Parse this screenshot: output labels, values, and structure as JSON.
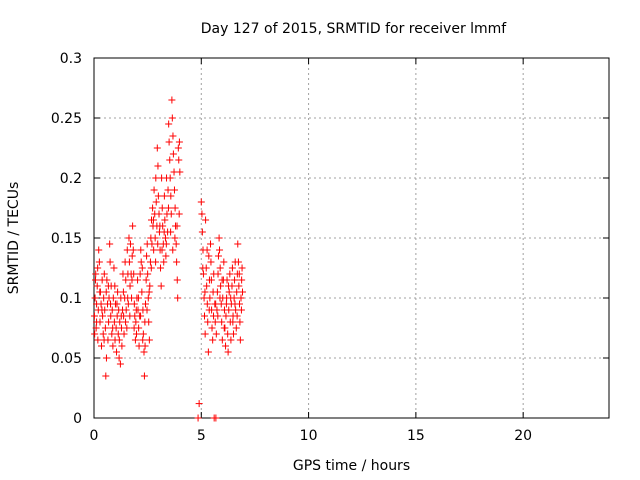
{
  "chart_data": {
    "type": "scatter",
    "title": "Day 127 of 2015, SRMTID for receiver lmmf",
    "xlabel": "GPS time / hours",
    "ylabel": "SRMTID / TECUs",
    "xlim": [
      0,
      24
    ],
    "ylim": [
      0,
      0.3
    ],
    "xticks": [
      0,
      5,
      10,
      15,
      20
    ],
    "yticks": [
      0,
      0.05,
      0.1,
      0.15,
      0.2,
      0.25,
      0.3
    ],
    "xtick_labels": [
      "0",
      "5",
      "10",
      "15",
      "20"
    ],
    "ytick_labels": [
      "0",
      "0.05",
      "0.1",
      "0.15",
      "0.2",
      "0.25",
      "0.3"
    ],
    "grid": true,
    "marker": "+",
    "color": "#ff0000",
    "series": [
      {
        "name": "SRMTID",
        "points": [
          [
            0.02,
            0.085
          ],
          [
            0.05,
            0.1
          ],
          [
            0.08,
            0.12
          ],
          [
            0.1,
            0.075
          ],
          [
            0.12,
            0.095
          ],
          [
            0.15,
            0.11
          ],
          [
            0.18,
            0.065
          ],
          [
            0.2,
            0.09
          ],
          [
            0.22,
            0.14
          ],
          [
            0.25,
            0.13
          ],
          [
            0.28,
            0.08
          ],
          [
            0.3,
            0.105
          ],
          [
            0.33,
            0.095
          ],
          [
            0.35,
            0.06
          ],
          [
            0.38,
            0.115
          ],
          [
            0.4,
            0.085
          ],
          [
            0.43,
            0.07
          ],
          [
            0.45,
            0.1
          ],
          [
            0.48,
            0.12
          ],
          [
            0.5,
            0.09
          ],
          [
            0.53,
            0.075
          ],
          [
            0.55,
            0.035
          ],
          [
            0.58,
            0.05
          ],
          [
            0.6,
            0.115
          ],
          [
            0.63,
            0.095
          ],
          [
            0.65,
            0.065
          ],
          [
            0.68,
            0.08
          ],
          [
            0.7,
            0.1
          ],
          [
            0.73,
            0.145
          ],
          [
            0.75,
            0.13
          ],
          [
            0.78,
            0.085
          ],
          [
            0.8,
            0.11
          ],
          [
            0.83,
            0.07
          ],
          [
            0.85,
            0.09
          ],
          [
            0.88,
            0.06
          ],
          [
            0.9,
            0.1
          ],
          [
            0.93,
            0.125
          ],
          [
            0.95,
            0.08
          ],
          [
            0.98,
            0.065
          ],
          [
            1.0,
            0.095
          ],
          [
            1.03,
            0.075
          ],
          [
            1.05,
            0.055
          ],
          [
            1.08,
            0.085
          ],
          [
            1.1,
            0.105
          ],
          [
            1.13,
            0.07
          ],
          [
            1.15,
            0.09
          ],
          [
            1.18,
            0.065
          ],
          [
            1.2,
            0.08
          ],
          [
            1.23,
            0.045
          ],
          [
            1.25,
            0.1
          ],
          [
            1.28,
            0.075
          ],
          [
            1.3,
            0.06
          ],
          [
            1.33,
            0.09
          ],
          [
            1.35,
            0.12
          ],
          [
            1.38,
            0.085
          ],
          [
            1.4,
            0.07
          ],
          [
            1.43,
            0.1
          ],
          [
            1.45,
            0.13
          ],
          [
            1.48,
            0.115
          ],
          [
            1.5,
            0.09
          ],
          [
            1.53,
            0.075
          ],
          [
            1.55,
            0.14
          ],
          [
            1.58,
            0.12
          ],
          [
            1.6,
            0.095
          ],
          [
            1.63,
            0.15
          ],
          [
            1.65,
            0.13
          ],
          [
            1.68,
            0.11
          ],
          [
            1.7,
            0.145
          ],
          [
            1.73,
            0.12
          ],
          [
            1.75,
            0.1
          ],
          [
            1.78,
            0.135
          ],
          [
            1.8,
            0.16
          ],
          [
            1.83,
            0.14
          ],
          [
            1.85,
            0.12
          ],
          [
            1.88,
            0.095
          ],
          [
            1.9,
            0.085
          ],
          [
            1.93,
            0.065
          ],
          [
            1.95,
            0.08
          ],
          [
            1.98,
            0.07
          ],
          [
            2.0,
            0.1
          ],
          [
            2.03,
            0.115
          ],
          [
            2.05,
            0.09
          ],
          [
            2.08,
            0.075
          ],
          [
            2.1,
            0.06
          ],
          [
            2.13,
            0.085
          ],
          [
            2.15,
            0.12
          ],
          [
            2.18,
            0.14
          ],
          [
            2.2,
            0.13
          ],
          [
            2.23,
            0.105
          ],
          [
            2.25,
            0.125
          ],
          [
            2.28,
            0.09
          ],
          [
            2.3,
            0.07
          ],
          [
            2.33,
            0.055
          ],
          [
            2.35,
            0.035
          ],
          [
            2.38,
            0.06
          ],
          [
            2.4,
            0.095
          ],
          [
            2.43,
            0.115
          ],
          [
            2.45,
            0.135
          ],
          [
            2.48,
            0.145
          ],
          [
            2.5,
            0.12
          ],
          [
            2.53,
            0.1
          ],
          [
            2.55,
            0.08
          ],
          [
            2.58,
            0.065
          ],
          [
            2.6,
            0.11
          ],
          [
            2.63,
            0.13
          ],
          [
            2.65,
            0.15
          ],
          [
            2.68,
            0.165
          ],
          [
            2.7,
            0.145
          ],
          [
            2.73,
            0.175
          ],
          [
            2.75,
            0.16
          ],
          [
            2.78,
            0.14
          ],
          [
            2.8,
            0.19
          ],
          [
            2.83,
            0.17
          ],
          [
            2.85,
            0.15
          ],
          [
            2.88,
            0.2
          ],
          [
            2.9,
            0.18
          ],
          [
            2.93,
            0.16
          ],
          [
            2.95,
            0.225
          ],
          [
            2.98,
            0.21
          ],
          [
            3.0,
            0.185
          ],
          [
            3.03,
            0.17
          ],
          [
            3.05,
            0.155
          ],
          [
            3.08,
            0.14
          ],
          [
            3.1,
            0.125
          ],
          [
            3.13,
            0.11
          ],
          [
            3.15,
            0.2
          ],
          [
            3.18,
            0.175
          ],
          [
            3.2,
            0.16
          ],
          [
            3.23,
            0.145
          ],
          [
            3.25,
            0.13
          ],
          [
            3.28,
            0.185
          ],
          [
            3.3,
            0.165
          ],
          [
            3.33,
            0.15
          ],
          [
            3.35,
            0.135
          ],
          [
            3.38,
            0.2
          ],
          [
            3.4,
            0.17
          ],
          [
            3.43,
            0.155
          ],
          [
            3.45,
            0.19
          ],
          [
            3.48,
            0.245
          ],
          [
            3.5,
            0.23
          ],
          [
            3.53,
            0.215
          ],
          [
            3.55,
            0.2
          ],
          [
            3.58,
            0.185
          ],
          [
            3.6,
            0.17
          ],
          [
            3.63,
            0.265
          ],
          [
            3.65,
            0.25
          ],
          [
            3.68,
            0.235
          ],
          [
            3.7,
            0.22
          ],
          [
            3.73,
            0.205
          ],
          [
            3.75,
            0.19
          ],
          [
            3.78,
            0.175
          ],
          [
            3.8,
            0.16
          ],
          [
            3.83,
            0.145
          ],
          [
            3.85,
            0.13
          ],
          [
            3.88,
            0.115
          ],
          [
            3.9,
            0.1
          ],
          [
            3.93,
            0.225
          ],
          [
            3.95,
            0.215
          ],
          [
            3.98,
            0.23
          ],
          [
            4.0,
            0.205
          ],
          [
            4.85,
            0.0
          ],
          [
            4.9,
            0.012
          ],
          [
            5.0,
            0.18
          ],
          [
            5.03,
            0.17
          ],
          [
            5.05,
            0.155
          ],
          [
            5.08,
            0.14
          ],
          [
            5.1,
            0.12
          ],
          [
            5.13,
            0.1
          ],
          [
            5.15,
            0.085
          ],
          [
            5.18,
            0.07
          ],
          [
            5.2,
            0.165
          ],
          [
            5.23,
            0.125
          ],
          [
            5.25,
            0.11
          ],
          [
            5.28,
            0.095
          ],
          [
            5.3,
            0.08
          ],
          [
            5.33,
            0.055
          ],
          [
            5.35,
            0.135
          ],
          [
            5.38,
            0.115
          ],
          [
            5.4,
            0.1
          ],
          [
            5.43,
            0.145
          ],
          [
            5.45,
            0.13
          ],
          [
            5.48,
            0.09
          ],
          [
            5.5,
            0.075
          ],
          [
            5.53,
            0.065
          ],
          [
            5.55,
            0.105
          ],
          [
            5.58,
            0.12
          ],
          [
            5.6,
            0.0
          ],
          [
            5.63,
            0.095
          ],
          [
            5.65,
            0.08
          ],
          [
            5.68,
            0.0
          ],
          [
            5.7,
            0.07
          ],
          [
            5.73,
            0.09
          ],
          [
            5.75,
            0.105
          ],
          [
            5.78,
            0.12
          ],
          [
            5.8,
            0.135
          ],
          [
            5.83,
            0.15
          ],
          [
            5.85,
            0.14
          ],
          [
            5.88,
            0.125
          ],
          [
            5.9,
            0.11
          ],
          [
            5.93,
            0.095
          ],
          [
            5.95,
            0.08
          ],
          [
            5.98,
            0.065
          ],
          [
            6.0,
            0.1
          ],
          [
            6.03,
            0.115
          ],
          [
            6.05,
            0.13
          ],
          [
            6.08,
            0.09
          ],
          [
            6.1,
            0.075
          ],
          [
            6.13,
            0.06
          ],
          [
            6.15,
            0.085
          ],
          [
            6.18,
            0.1
          ],
          [
            6.2,
            0.115
          ],
          [
            6.23,
            0.07
          ],
          [
            6.25,
            0.055
          ],
          [
            6.28,
            0.09
          ],
          [
            6.3,
            0.105
          ],
          [
            6.33,
            0.12
          ],
          [
            6.35,
            0.08
          ],
          [
            6.38,
            0.065
          ],
          [
            6.4,
            0.095
          ],
          [
            6.43,
            0.11
          ],
          [
            6.45,
            0.125
          ],
          [
            6.48,
            0.085
          ],
          [
            6.5,
            0.07
          ],
          [
            6.53,
            0.1
          ],
          [
            6.55,
            0.115
          ],
          [
            6.58,
            0.13
          ],
          [
            6.6,
            0.09
          ],
          [
            6.63,
            0.075
          ],
          [
            6.65,
            0.105
          ],
          [
            6.68,
            0.12
          ],
          [
            6.7,
            0.145
          ],
          [
            6.73,
            0.13
          ],
          [
            6.75,
            0.11
          ],
          [
            6.78,
            0.095
          ],
          [
            6.8,
            0.08
          ],
          [
            6.82,
            0.065
          ],
          [
            6.85,
            0.1
          ],
          [
            6.88,
            0.115
          ],
          [
            6.9,
            0.125
          ],
          [
            6.92,
            0.105
          ],
          [
            0.03,
            0.07
          ],
          [
            0.07,
            0.115
          ],
          [
            0.12,
            0.08
          ],
          [
            0.17,
            0.125
          ],
          [
            0.27,
            0.105
          ],
          [
            0.37,
            0.09
          ],
          [
            0.47,
            0.065
          ],
          [
            0.57,
            0.105
          ],
          [
            0.67,
            0.11
          ],
          [
            0.77,
            0.095
          ],
          [
            0.87,
            0.075
          ],
          [
            0.97,
            0.11
          ],
          [
            1.07,
            0.095
          ],
          [
            1.17,
            0.05
          ],
          [
            1.27,
            0.085
          ],
          [
            1.37,
            0.105
          ],
          [
            1.47,
            0.08
          ],
          [
            1.57,
            0.1
          ],
          [
            1.67,
            0.085
          ],
          [
            1.77,
            0.115
          ],
          [
            1.87,
            0.075
          ],
          [
            1.97,
            0.09
          ],
          [
            2.07,
            0.1
          ],
          [
            2.17,
            0.085
          ],
          [
            2.27,
            0.065
          ],
          [
            2.37,
            0.08
          ],
          [
            2.47,
            0.09
          ],
          [
            2.57,
            0.105
          ],
          [
            2.67,
            0.125
          ],
          [
            2.77,
            0.165
          ],
          [
            2.87,
            0.13
          ],
          [
            2.97,
            0.145
          ],
          [
            3.07,
            0.16
          ],
          [
            3.17,
            0.14
          ],
          [
            3.27,
            0.155
          ],
          [
            3.37,
            0.145
          ],
          [
            3.47,
            0.175
          ],
          [
            3.57,
            0.155
          ],
          [
            3.67,
            0.14
          ],
          [
            3.77,
            0.15
          ],
          [
            3.87,
            0.16
          ],
          [
            3.97,
            0.17
          ],
          [
            5.07,
            0.125
          ],
          [
            5.17,
            0.105
          ],
          [
            5.27,
            0.14
          ],
          [
            5.37,
            0.09
          ],
          [
            5.47,
            0.115
          ],
          [
            5.57,
            0.085
          ],
          [
            5.67,
            0.095
          ],
          [
            5.77,
            0.085
          ],
          [
            5.87,
            0.1
          ],
          [
            5.97,
            0.115
          ],
          [
            6.07,
            0.075
          ],
          [
            6.17,
            0.095
          ],
          [
            6.27,
            0.11
          ],
          [
            6.37,
            0.1
          ],
          [
            6.47,
            0.08
          ],
          [
            6.57,
            0.095
          ],
          [
            6.67,
            0.085
          ],
          [
            6.77,
            0.12
          ],
          [
            6.87,
            0.09
          ]
        ]
      }
    ]
  }
}
